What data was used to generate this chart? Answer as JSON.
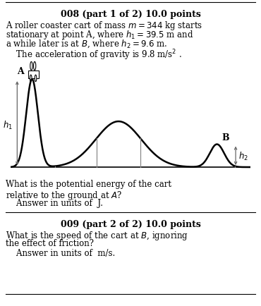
{
  "title1": "008 (part 1 of 2) 10.0 points",
  "title2": "009 (part 2 of 2) 10.0 points",
  "body1_line1": "A roller coaster cart of mass $m = 344$ kg starts",
  "body1_line2": "stationary at point A, where $h_1 = 39.5$ m and",
  "body1_line3": "a while later is at $B$, where $h_2 = 9.6$ m.",
  "body1_line4": "    The acceleration of gravity is 9.8 m/s$^2$ .",
  "q1_line1": "What is the potential energy of the cart",
  "q1_line2": "relative to the ground at $A$?",
  "q1_line3": "    Answer in units of  J.",
  "q2_line1": "What is the speed of the cart at $B$, ignoring",
  "q2_line2": "the effect of friction?",
  "q2_line3": "    Answer in units of  m/s.",
  "bg_color": "#ffffff",
  "text_color": "#000000",
  "curve_color": "#000000",
  "vline_color": "#888888",
  "arrow_color": "#666666"
}
